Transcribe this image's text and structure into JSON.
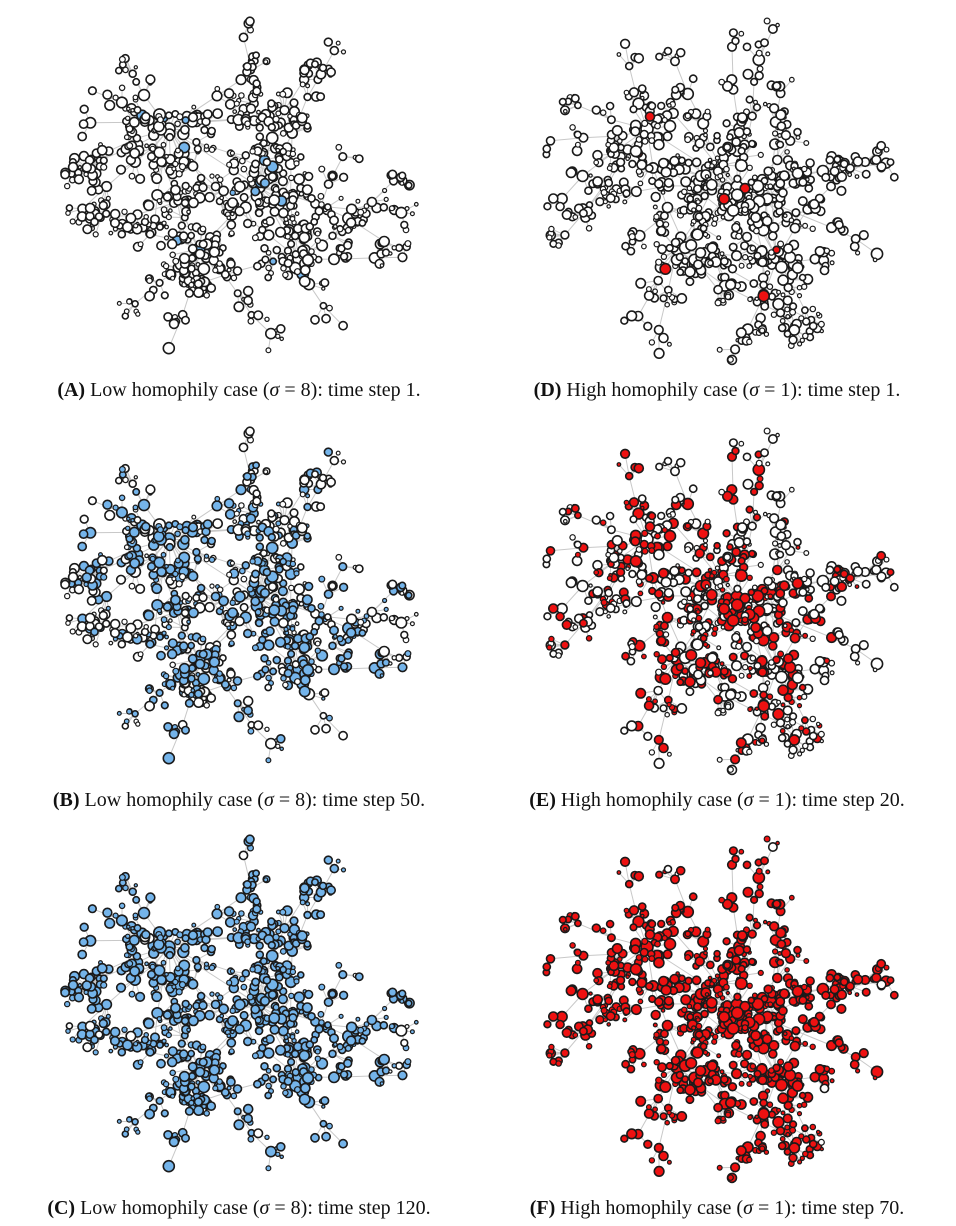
{
  "colors": {
    "blue": "#74b4ea",
    "red": "#ee1111",
    "edge": "#c8c8c8",
    "stroke": "#1a1a1a",
    "empty": "#ffffff"
  },
  "panels": [
    {
      "id": "A",
      "label": "(A)",
      "case": "Low homophily case",
      "sigma_symbol": "σ",
      "eq": "=",
      "sigma_value": "8",
      "step_text": "time step",
      "step": "1.",
      "fill_color": "blue",
      "fill_fraction": 0.14,
      "seed": 11
    },
    {
      "id": "B",
      "label": "(B)",
      "case": "Low homophily case",
      "sigma_symbol": "σ",
      "eq": "=",
      "sigma_value": "8",
      "step_text": "time step",
      "step": "50.",
      "fill_color": "blue",
      "fill_fraction": 0.52,
      "seed": 11
    },
    {
      "id": "C",
      "label": "(C)",
      "case": "Low homophily case",
      "sigma_symbol": "σ",
      "eq": "=",
      "sigma_value": "8",
      "step_text": "time step",
      "step": "120.",
      "fill_color": "blue",
      "fill_fraction": 0.84,
      "seed": 11
    },
    {
      "id": "D",
      "label": "(D)",
      "case": "High homophily case",
      "sigma_symbol": "σ",
      "eq": "=",
      "sigma_value": "1",
      "step_text": "time step",
      "step": "1.",
      "fill_color": "red",
      "fill_fraction": 0.12,
      "seed": 29
    },
    {
      "id": "E",
      "label": "(E)",
      "case": "High homophily case",
      "sigma_symbol": "σ",
      "eq": "=",
      "sigma_value": "1",
      "step_text": "time step",
      "step": "20.",
      "fill_color": "red",
      "fill_fraction": 0.48,
      "seed": 29
    },
    {
      "id": "F",
      "label": "(F)",
      "case": "High homophily case",
      "sigma_symbol": "σ",
      "eq": "=",
      "sigma_value": "1",
      "step_text": "time step",
      "step": "70.",
      "fill_color": "red",
      "fill_fraction": 0.9,
      "seed": 29
    }
  ]
}
